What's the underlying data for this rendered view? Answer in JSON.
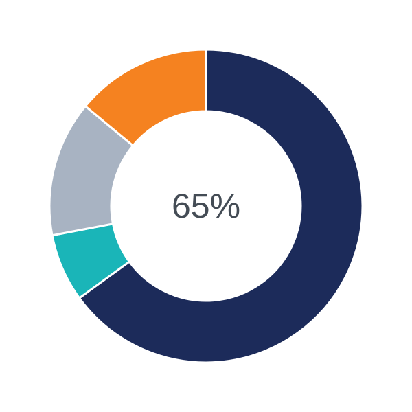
{
  "chart_data": {
    "type": "pie",
    "style": "donut",
    "center_label": "65%",
    "values": [
      65,
      7,
      14,
      14
    ],
    "colors": [
      "#1c2b5a",
      "#1ab5b8",
      "#a8b3c2",
      "#f58220"
    ],
    "start": "top",
    "direction": "clockwise"
  }
}
